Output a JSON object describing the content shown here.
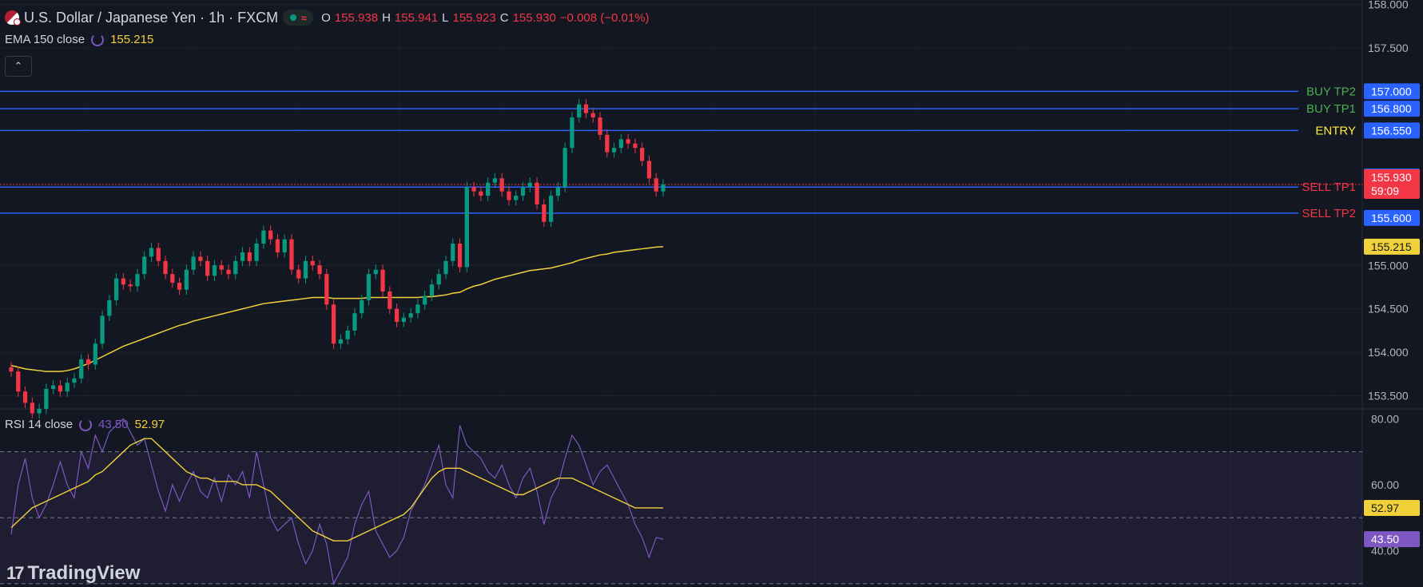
{
  "header": {
    "symbol_title": "U.S. Dollar / Japanese Yen · 1h · FXCM",
    "ohlc": {
      "o_label": "O",
      "o": "155.938",
      "h_label": "H",
      "h": "155.941",
      "l_label": "L",
      "l": "155.923",
      "c_label": "C",
      "c": "155.930",
      "change": "−0.008 (−0.01%)"
    }
  },
  "indicators": {
    "ema": {
      "label": "EMA 150 close",
      "value": "155.215"
    },
    "rsi": {
      "label": "RSI 14 close",
      "value": "43.50",
      "ma_value": "52.97"
    }
  },
  "collapse_icon": "chevron-up-icon",
  "brand": "TradingView",
  "colors": {
    "bg": "#131722",
    "up": "#089981",
    "down": "#f23645",
    "ema": "#f0d13a",
    "rsi": "#7e57c2",
    "level": "#2962ff",
    "buy_text": "#4caf50",
    "sell_text": "#f23645",
    "entry_text": "#ffeb3b"
  },
  "chart_data": [
    {
      "type": "candlestick",
      "title": "U.S. Dollar / Japanese Yen · 1h · FXCM",
      "ylim": [
        153.35,
        158.05
      ],
      "yticks": [
        "158.000",
        "157.500",
        "155.000",
        "154.500",
        "154.000",
        "153.500"
      ],
      "last_price": "155.930",
      "countdown": "59:09",
      "levels": [
        {
          "label": "BUY TP2",
          "value": "157.000",
          "text_color": "#4caf50",
          "tag_color": "#2962ff"
        },
        {
          "label": "BUY TP1",
          "value": "156.800",
          "text_color": "#4caf50",
          "tag_color": "#2962ff"
        },
        {
          "label": "ENTRY",
          "value": "156.550",
          "text_color": "#ffeb3b",
          "tag_color": "#2962ff"
        },
        {
          "label": "SELL TP1",
          "value": "155.900",
          "text_color": "#f23645",
          "tag_color": "#2962ff"
        },
        {
          "label": "SELL TP2",
          "value": "155.600",
          "text_color": "#f23645",
          "tag_color": "#2962ff"
        }
      ],
      "ema_tag": "155.215",
      "close": [
        153.78,
        153.55,
        153.42,
        153.3,
        153.35,
        153.58,
        153.62,
        153.55,
        153.65,
        153.7,
        153.92,
        153.86,
        154.1,
        154.42,
        154.6,
        154.85,
        154.78,
        154.76,
        154.9,
        155.1,
        155.2,
        155.05,
        154.9,
        154.8,
        154.72,
        154.95,
        155.1,
        155.05,
        154.88,
        155.0,
        154.95,
        154.9,
        155.05,
        155.15,
        155.05,
        155.25,
        155.4,
        155.3,
        155.15,
        155.3,
        154.95,
        154.85,
        155.05,
        155.0,
        154.9,
        154.55,
        154.1,
        154.15,
        154.25,
        154.45,
        154.6,
        154.9,
        154.95,
        154.7,
        154.5,
        154.35,
        154.4,
        154.45,
        154.55,
        154.65,
        154.78,
        154.9,
        155.05,
        155.25,
        154.98,
        155.9,
        155.85,
        155.8,
        155.95,
        156.0,
        155.85,
        155.75,
        155.8,
        155.9,
        155.95,
        155.7,
        155.5,
        155.8,
        155.9,
        156.35,
        156.7,
        156.85,
        156.75,
        156.7,
        156.5,
        156.3,
        156.35,
        156.45,
        156.4,
        156.35,
        156.2,
        156.0,
        155.85,
        155.93
      ],
      "ema": [
        153.85,
        153.83,
        153.81,
        153.8,
        153.79,
        153.78,
        153.78,
        153.78,
        153.79,
        153.81,
        153.84,
        153.87,
        153.91,
        153.95,
        153.99,
        154.03,
        154.07,
        154.1,
        154.13,
        154.16,
        154.19,
        154.22,
        154.25,
        154.28,
        154.31,
        154.33,
        154.36,
        154.38,
        154.4,
        154.42,
        154.44,
        154.46,
        154.48,
        154.5,
        154.52,
        154.54,
        154.56,
        154.57,
        154.58,
        154.59,
        154.6,
        154.61,
        154.62,
        154.63,
        154.63,
        154.63,
        154.62,
        154.62,
        154.62,
        154.62,
        154.62,
        154.63,
        154.63,
        154.63,
        154.63,
        154.63,
        154.63,
        154.63,
        154.63,
        154.64,
        154.64,
        154.65,
        154.66,
        154.68,
        154.69,
        154.73,
        154.76,
        154.78,
        154.81,
        154.84,
        154.86,
        154.88,
        154.9,
        154.92,
        154.94,
        154.95,
        154.96,
        154.97,
        154.99,
        155.01,
        155.03,
        155.06,
        155.08,
        155.1,
        155.12,
        155.13,
        155.15,
        155.16,
        155.17,
        155.18,
        155.19,
        155.2,
        155.21,
        155.215
      ]
    },
    {
      "type": "line",
      "title": "RSI 14 close",
      "ylim": [
        29,
        83
      ],
      "yticks": [
        "80.00",
        "60.00",
        "40.00"
      ],
      "bands": [
        70,
        50,
        30
      ],
      "series": [
        {
          "name": "RSI",
          "values": [
            45,
            60,
            68,
            56,
            50,
            54,
            60,
            67,
            60,
            56,
            70,
            65,
            75,
            70,
            76,
            78,
            80,
            76,
            72,
            74,
            66,
            58,
            52,
            60,
            55,
            60,
            64,
            58,
            56,
            62,
            55,
            63,
            60,
            64,
            56,
            70,
            60,
            50,
            46,
            48,
            50,
            42,
            36,
            40,
            48,
            42,
            30,
            34,
            38,
            48,
            54,
            58,
            46,
            42,
            38,
            40,
            44,
            52,
            56,
            60,
            66,
            72,
            60,
            56,
            78,
            72,
            70,
            68,
            64,
            62,
            66,
            60,
            56,
            62,
            65,
            58,
            48,
            56,
            60,
            68,
            75,
            72,
            66,
            60,
            64,
            66,
            62,
            58,
            54,
            48,
            44,
            38,
            44,
            43.5
          ]
        },
        {
          "name": "MA",
          "values": [
            47,
            49,
            51,
            53,
            54,
            55,
            56,
            57,
            58,
            59,
            60,
            61,
            63,
            64,
            66,
            68,
            70,
            72,
            73,
            74,
            74,
            72,
            70,
            68,
            66,
            64,
            63,
            62,
            62,
            61,
            61,
            61,
            61,
            60,
            60,
            60,
            59,
            58,
            56,
            54,
            52,
            50,
            48,
            46,
            45,
            44,
            43,
            43,
            43,
            44,
            45,
            46,
            47,
            48,
            49,
            50,
            51,
            53,
            56,
            59,
            62,
            64,
            65,
            65,
            65,
            64,
            63,
            62,
            61,
            60,
            59,
            58,
            57,
            57,
            58,
            59,
            60,
            61,
            62,
            62,
            62,
            61,
            60,
            59,
            58,
            57,
            56,
            55,
            54,
            53,
            53,
            53,
            53,
            52.97
          ]
        }
      ]
    }
  ]
}
